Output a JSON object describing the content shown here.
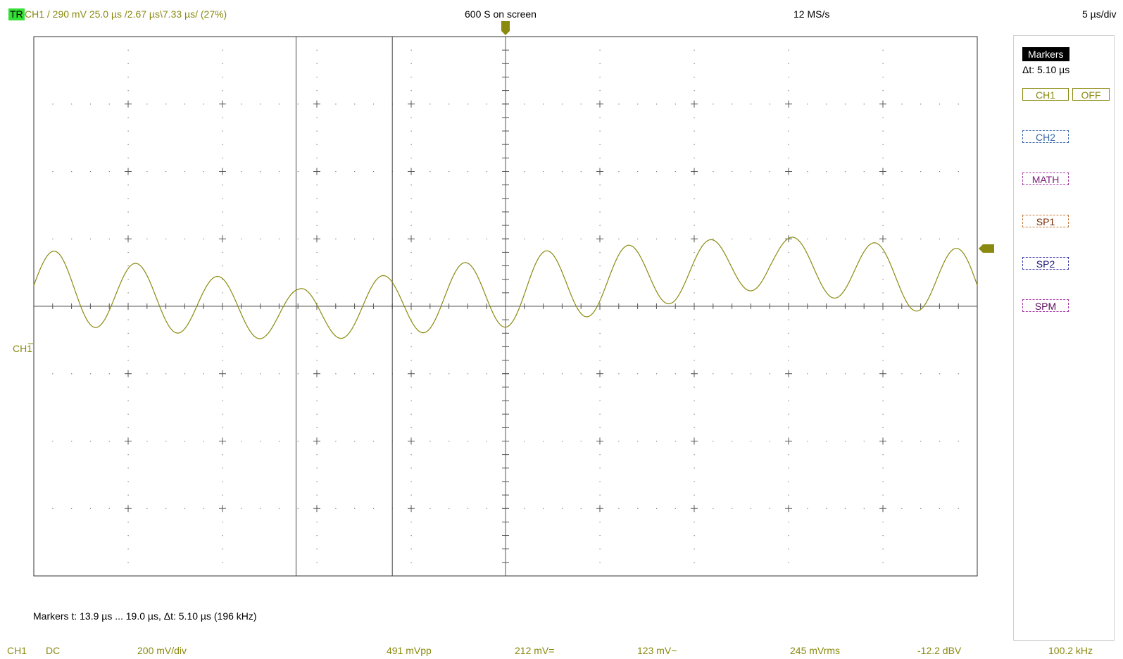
{
  "top_bar": {
    "trigger_badge": "TR",
    "trigger_info": "CH1  /  290 mV  25.0 µs  /2.67 µs\\7.33 µs/ (27%)",
    "samples_on_screen": "600 S on screen",
    "sample_rate": "12 MS/s",
    "timebase": "5 µs/div"
  },
  "side_panel": {
    "markers_title": "Markers",
    "markers_delta": "Δt: 5.10 µs",
    "buttons": {
      "ch1": "CH1",
      "off": "OFF",
      "ch2": "CH2",
      "math": "MATH",
      "sp1": "SP1",
      "sp2": "SP2",
      "spm": "SPM"
    }
  },
  "channel_label": "CH1",
  "markers_info": "Markers   t: 13.9 µs ... 19.0 µs,  Δt: 5.10 µs (196 kHz)",
  "bottom_bar": {
    "channel": "CH1",
    "coupling": "DC",
    "volts_per_div": "200 mV/div",
    "vpp": "491 mVpp",
    "v_dc": "212 mV=",
    "v_ac": "123 mV~",
    "vrms": "245 mVrms",
    "dbv": "-12.2 dBV",
    "frequency": "100.2 kHz"
  },
  "colors": {
    "trace": "#8a8a10",
    "trigger_badge": "#35e035",
    "grid": "#555555"
  },
  "waveform": {
    "divisions_x": 10,
    "divisions_y": 8,
    "time_per_div_us": 5,
    "ground_level_div_from_top": 4,
    "low_freq_khz": 20,
    "high_freq_khz": 230,
    "marker_times_us": [
      13.9,
      19.0
    ]
  }
}
